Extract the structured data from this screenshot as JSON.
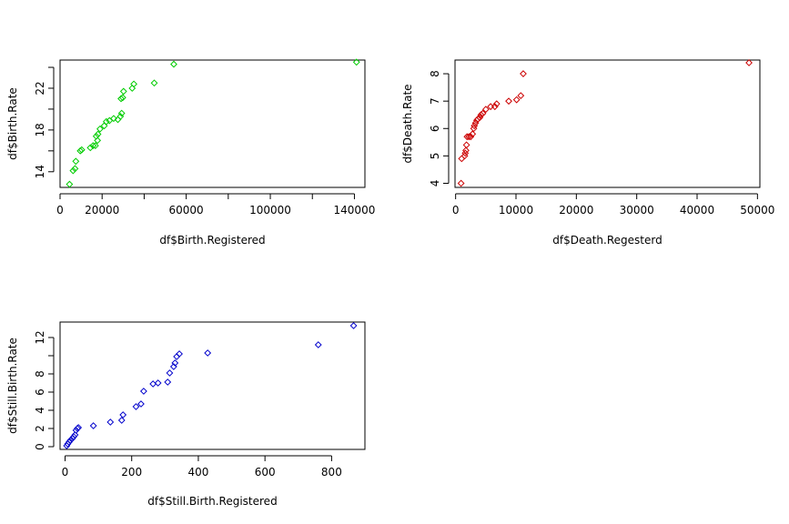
{
  "chart_data": [
    {
      "type": "scatter",
      "xlabel": "df$Birth.Registered",
      "ylabel": "df$Birth.Rate",
      "xlim": [
        0,
        145000
      ],
      "ylim": [
        12.5,
        24.7
      ],
      "xticks": [
        0,
        20000,
        60000,
        100000,
        140000
      ],
      "xticks_minor": [
        40000,
        80000,
        120000
      ],
      "yticks": [
        14,
        18,
        22
      ],
      "yticks_minor": [
        16,
        20,
        24
      ],
      "color": "#00CC00",
      "points": [
        [
          4500,
          12.8
        ],
        [
          6200,
          14.1
        ],
        [
          7100,
          14.3
        ],
        [
          7500,
          15.0
        ],
        [
          9600,
          16.0
        ],
        [
          10300,
          16.1
        ],
        [
          14400,
          16.3
        ],
        [
          15700,
          16.5
        ],
        [
          16800,
          16.5
        ],
        [
          17800,
          17.0
        ],
        [
          17200,
          17.4
        ],
        [
          18000,
          17.6
        ],
        [
          19000,
          18.1
        ],
        [
          21000,
          18.4
        ],
        [
          22000,
          18.8
        ],
        [
          23500,
          18.9
        ],
        [
          25500,
          19.1
        ],
        [
          27500,
          19.0
        ],
        [
          28700,
          19.3
        ],
        [
          29300,
          19.6
        ],
        [
          29000,
          21.0
        ],
        [
          29800,
          21.1
        ],
        [
          30200,
          21.7
        ],
        [
          34300,
          22.0
        ],
        [
          35100,
          22.4
        ],
        [
          44800,
          22.5
        ],
        [
          54100,
          24.3
        ],
        [
          141000,
          24.5
        ]
      ]
    },
    {
      "type": "scatter",
      "xlabel": "df$Death.Regesterd",
      "ylabel": "df$Death.Rate",
      "xlim": [
        -100,
        50400
      ],
      "ylim": [
        3.85,
        8.5
      ],
      "xticks": [
        0,
        10000,
        20000,
        30000,
        40000,
        50000
      ],
      "yticks": [
        4,
        5,
        6,
        7,
        8
      ],
      "color": "#CC0000",
      "points": [
        [
          900,
          4.0
        ],
        [
          1000,
          4.9
        ],
        [
          1500,
          5.0
        ],
        [
          1600,
          5.1
        ],
        [
          1700,
          5.2
        ],
        [
          1800,
          5.4
        ],
        [
          1900,
          5.7
        ],
        [
          2200,
          5.7
        ],
        [
          2500,
          5.7
        ],
        [
          2800,
          5.8
        ],
        [
          3000,
          6.0
        ],
        [
          3100,
          6.1
        ],
        [
          3300,
          6.2
        ],
        [
          3500,
          6.3
        ],
        [
          3700,
          6.35
        ],
        [
          4000,
          6.4
        ],
        [
          4200,
          6.5
        ],
        [
          4500,
          6.55
        ],
        [
          5000,
          6.7
        ],
        [
          5800,
          6.8
        ],
        [
          6500,
          6.8
        ],
        [
          6800,
          6.9
        ],
        [
          8800,
          7.0
        ],
        [
          10100,
          7.05
        ],
        [
          10800,
          7.2
        ],
        [
          11200,
          8.0
        ],
        [
          48600,
          8.4
        ]
      ]
    },
    {
      "type": "scatter",
      "xlabel": "df$Still.Birth.Registered",
      "ylabel": "df$Still.Birth.Rate",
      "xlim": [
        -15,
        900
      ],
      "ylim": [
        -0.3,
        13.7
      ],
      "xticks": [
        0,
        200,
        400,
        600,
        800
      ],
      "yticks": [
        0,
        2,
        4,
        6,
        8,
        12
      ],
      "yticks_minor": [
        10
      ],
      "color": "#0000CC",
      "points": [
        [
          5,
          0.1
        ],
        [
          8,
          0.3
        ],
        [
          12,
          0.5
        ],
        [
          16,
          0.7
        ],
        [
          22,
          0.9
        ],
        [
          26,
          1.1
        ],
        [
          30,
          1.3
        ],
        [
          33,
          1.8
        ],
        [
          37,
          2.0
        ],
        [
          40,
          2.1
        ],
        [
          85,
          2.3
        ],
        [
          136,
          2.7
        ],
        [
          170,
          2.9
        ],
        [
          174,
          3.5
        ],
        [
          213,
          4.4
        ],
        [
          228,
          4.7
        ],
        [
          236,
          6.1
        ],
        [
          264,
          6.9
        ],
        [
          279,
          7.0
        ],
        [
          308,
          7.1
        ],
        [
          314,
          8.1
        ],
        [
          326,
          8.8
        ],
        [
          330,
          9.2
        ],
        [
          335,
          9.9
        ],
        [
          343,
          10.2
        ],
        [
          428,
          10.3
        ],
        [
          760,
          11.2
        ],
        [
          866,
          13.3
        ]
      ]
    }
  ]
}
